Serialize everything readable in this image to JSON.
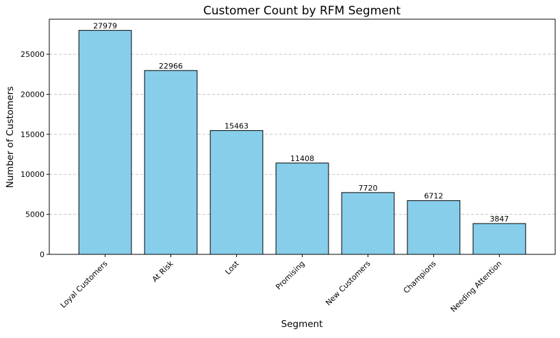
{
  "chart_data": {
    "type": "bar",
    "title": "Customer Count by RFM Segment",
    "xlabel": "Segment",
    "ylabel": "Number of Customers",
    "categories": [
      "Loyal Customers",
      "At Risk",
      "Lost",
      "Promising",
      "New Customers",
      "Champions",
      "Needing Attention"
    ],
    "values": [
      27979,
      22966,
      15463,
      11408,
      7720,
      6712,
      3847
    ],
    "value_labels": [
      "27979",
      "22966",
      "15463",
      "11408",
      "7720",
      "6712",
      "3847"
    ],
    "ylim": [
      0,
      29378
    ],
    "yticks": [
      0,
      5000,
      10000,
      15000,
      20000,
      25000
    ],
    "ytick_labels": [
      "0",
      "5000",
      "10000",
      "15000",
      "20000",
      "25000"
    ],
    "grid": "y-axis dashed",
    "bar_color": "#87CEEB",
    "bar_edge_color": "#000000",
    "x_tick_rotation": 45,
    "legend": "none"
  }
}
